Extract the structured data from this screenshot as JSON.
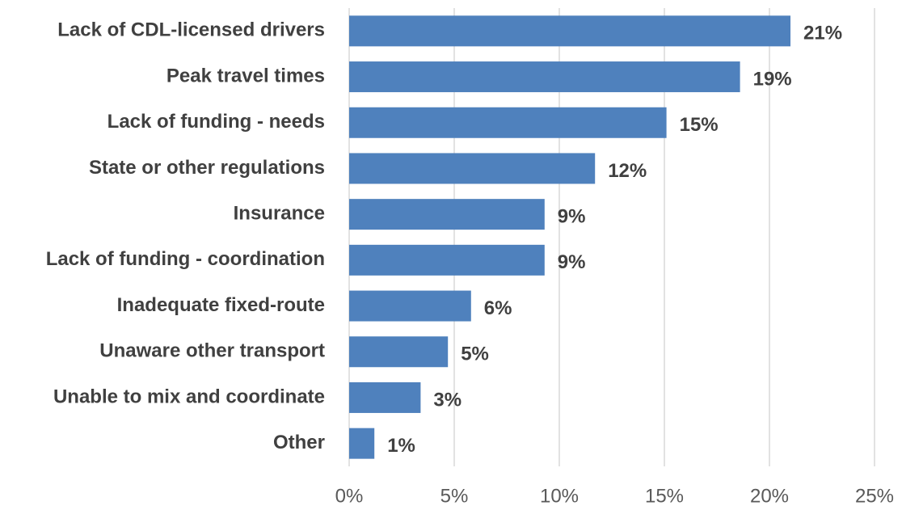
{
  "chart_data": {
    "type": "hbar",
    "categories": [
      "Lack of CDL-licensed drivers",
      "Peak travel times",
      "Lack of funding - needs",
      "State or other regulations",
      "Insurance",
      "Lack of funding - coordination",
      "Inadequate fixed-route",
      "Unaware other transport",
      "Unable to mix and coordinate",
      "Other"
    ],
    "values": [
      21.0,
      18.6,
      15.1,
      11.7,
      9.3,
      9.3,
      5.8,
      4.7,
      3.4,
      1.2
    ],
    "value_labels": [
      "21%",
      "19%",
      "15%",
      "12%",
      "9%",
      "9%",
      "6%",
      "5%",
      "3%",
      "1%"
    ],
    "color": "#4f81bd",
    "xlim": [
      0,
      25
    ],
    "xticks": [
      {
        "value": 0,
        "label": "0%"
      },
      {
        "value": 5,
        "label": "5%"
      },
      {
        "value": 10,
        "label": "10%"
      },
      {
        "value": 15,
        "label": "15%"
      },
      {
        "value": 20,
        "label": "20%"
      },
      {
        "value": 25,
        "label": "25%"
      }
    ],
    "grid": true
  }
}
